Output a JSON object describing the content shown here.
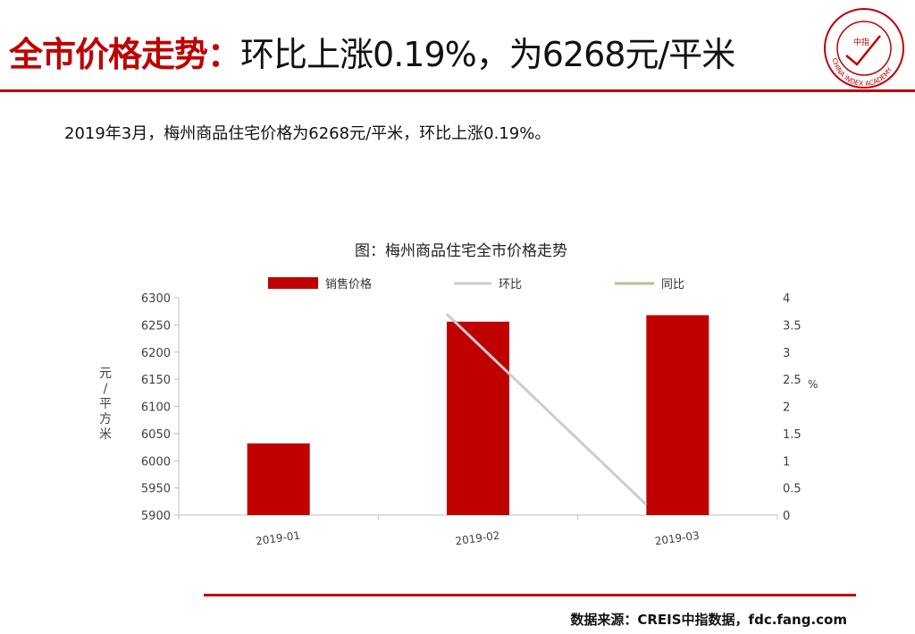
{
  "header": {
    "title_red": "全市价格走势：",
    "title_black": "环比上涨0.19%，为6268元/平米"
  },
  "logo": {
    "name": "china-index-academy-logo",
    "text": "CHINA INDEX ACADEMY",
    "center": "中指",
    "color": "#c00000"
  },
  "summary": "2019年3月，梅州商品住宅价格为6268元/平米，环比上涨0.19%。",
  "source": "数据来源：CREIS中指数据，fdc.fang.com",
  "colors": {
    "accent": "#c00000",
    "mom_line": "#c8cdd0",
    "yoy_line": "#a9c98a",
    "axis": "#bfbfbf",
    "tick_text": "#404040"
  },
  "chart_data": {
    "type": "bar",
    "title": "图：梅州商品住宅全市价格走势",
    "categories": [
      "2019-01",
      "2019-02",
      "2019-03"
    ],
    "series": [
      {
        "name": "销售价格",
        "type": "bar",
        "axis": "left",
        "values": [
          6032,
          6256,
          6268
        ]
      },
      {
        "name": "环比",
        "type": "line",
        "axis": "right",
        "values": [
          null,
          3.7,
          0.19
        ]
      },
      {
        "name": "同比",
        "type": "line",
        "axis": "right",
        "values": [
          null,
          null,
          null
        ]
      }
    ],
    "ylabel": "元/平方米",
    "ylabel_right": "%",
    "ylim": [
      5900,
      6300
    ],
    "yticks": [
      5900,
      5950,
      6000,
      6050,
      6100,
      6150,
      6200,
      6250,
      6300
    ],
    "y2lim": [
      0,
      4
    ],
    "y2ticks": [
      "0",
      "0.5",
      "1",
      "1.5",
      "2",
      "2.5",
      "3",
      "3.5",
      "4"
    ],
    "legend_position": "top",
    "grid": false
  }
}
